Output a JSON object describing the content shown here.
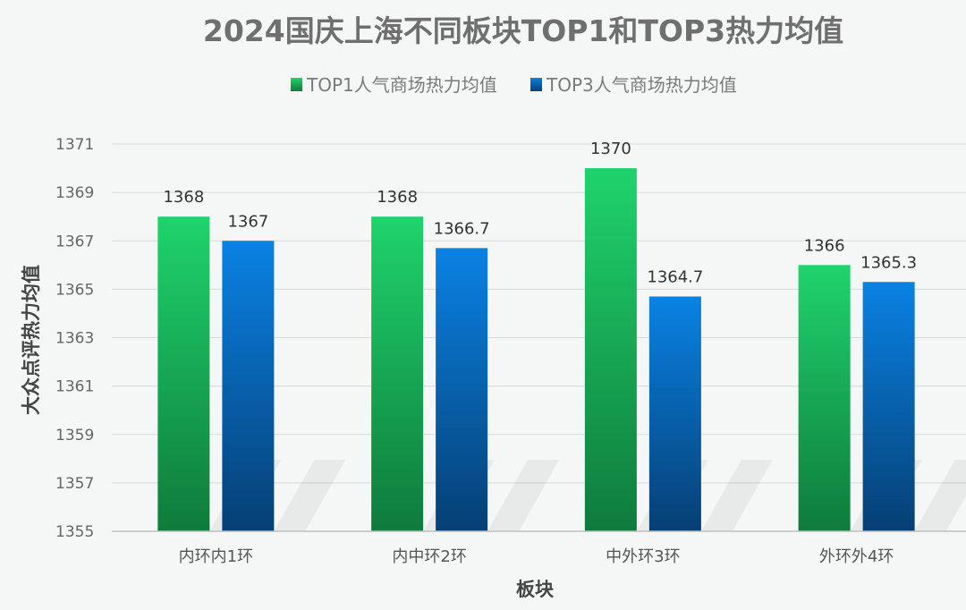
{
  "chart_data": {
    "type": "bar",
    "title": "2024国庆上海不同板块TOP1和TOP3热力均值",
    "xlabel": "板块",
    "ylabel": "大众点评热力均值",
    "ylim": [
      1355,
      1371
    ],
    "yticks": [
      1355,
      1357,
      1359,
      1361,
      1363,
      1365,
      1367,
      1369,
      1371
    ],
    "grid": true,
    "legend_position": "top-center",
    "categories": [
      "内环内1环",
      "内中环2环",
      "中外环3环",
      "外环外4环"
    ],
    "series": [
      {
        "name": "TOP1人气商场热力均值",
        "values": [
          1368,
          1368,
          1370,
          1366
        ],
        "labels": [
          "1368",
          "1368",
          "1370",
          "1366"
        ],
        "color_top": "#1fd36c",
        "color_bottom": "#0f7b3c"
      },
      {
        "name": "TOP3人气商场热力均值",
        "values": [
          1367,
          1366.7,
          1364.7,
          1365.3
        ],
        "labels": [
          "1367",
          "1366.7",
          "1364.7",
          "1365.3"
        ],
        "color_top": "#0a82e4",
        "color_bottom": "#063f74"
      }
    ]
  }
}
